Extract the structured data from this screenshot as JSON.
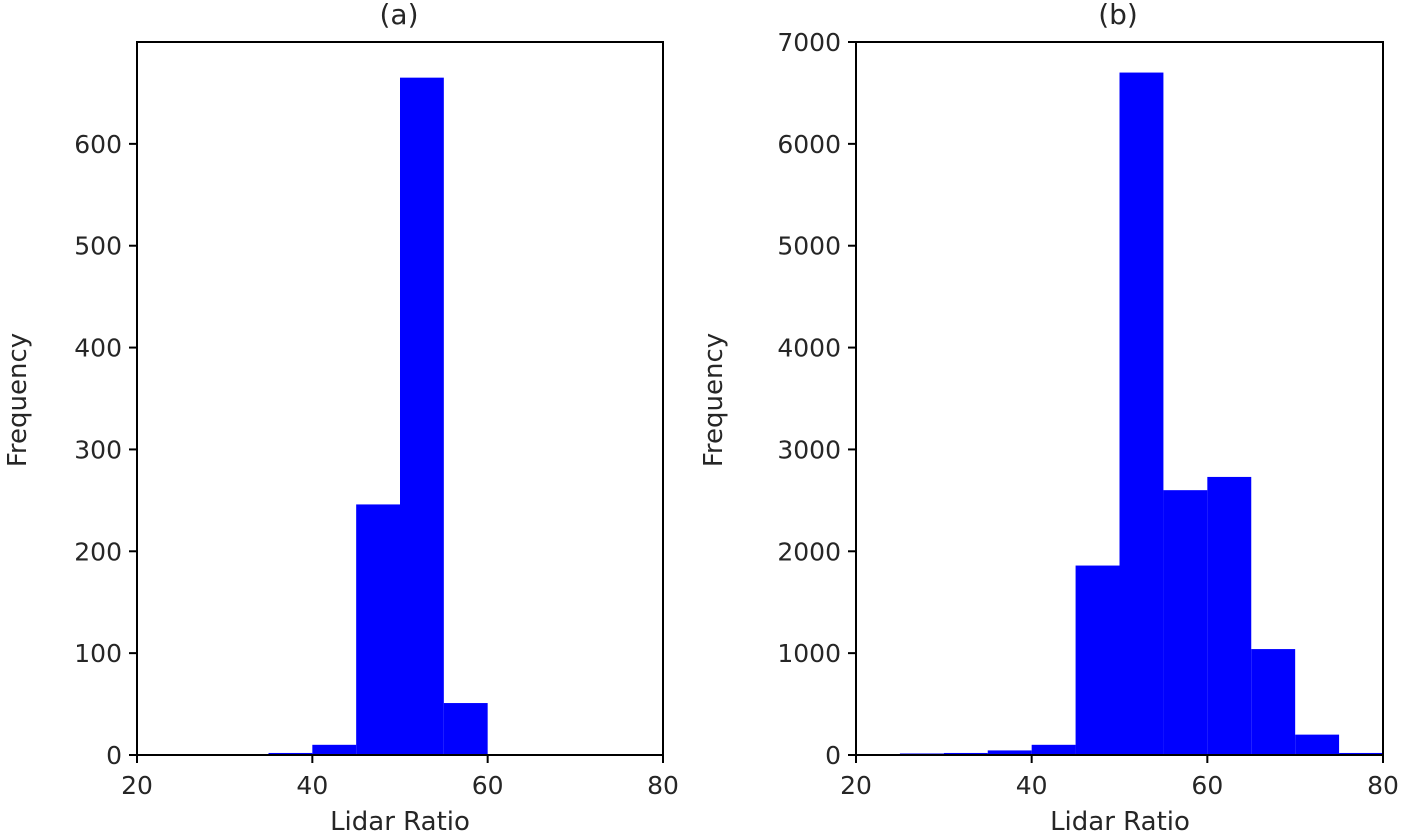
{
  "colors": {
    "bar": "#0000ff",
    "axis": "#000000",
    "text": "#262626",
    "background": "#ffffff"
  },
  "chart_data": [
    {
      "type": "bar",
      "title": "(a)",
      "xlabel": "Lidar Ratio",
      "ylabel": "Frequency",
      "xlim": [
        20,
        80
      ],
      "ylim": [
        0,
        700
      ],
      "xticks": [
        "20",
        "40",
        "60",
        "80"
      ],
      "yticks": [
        "0",
        "100",
        "200",
        "300",
        "400",
        "500",
        "600"
      ],
      "bin_edges": [
        35,
        40,
        45,
        50,
        55,
        60
      ],
      "values": [
        2,
        10,
        246,
        665,
        51
      ],
      "grid": false
    },
    {
      "type": "bar",
      "title": "(b)",
      "xlabel": "Lidar Ratio",
      "ylabel": "Frequency",
      "xlim": [
        20,
        80
      ],
      "ylim": [
        0,
        7000
      ],
      "xticks": [
        "20",
        "40",
        "60",
        "80"
      ],
      "yticks": [
        "0",
        "1000",
        "2000",
        "3000",
        "4000",
        "5000",
        "6000",
        "7000"
      ],
      "bin_edges": [
        25,
        30,
        35,
        40,
        45,
        50,
        55,
        60,
        65,
        70,
        75,
        80
      ],
      "values": [
        15,
        20,
        45,
        100,
        1860,
        6700,
        2600,
        2730,
        1040,
        200,
        20
      ],
      "grid": false
    }
  ]
}
